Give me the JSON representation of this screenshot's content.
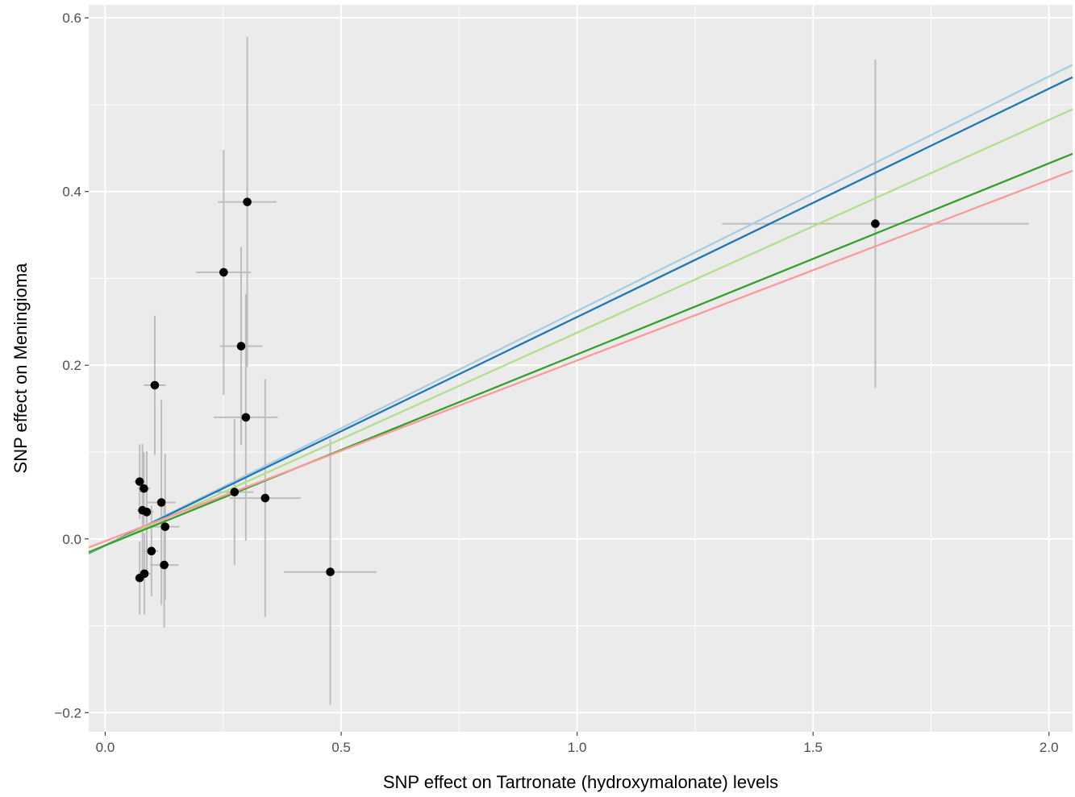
{
  "chart_data": {
    "type": "scatter",
    "title": "",
    "xlabel": "SNP effect on Tartronate (hydroxymalonate) levels",
    "ylabel": "SNP effect on Meningioma",
    "xlim": [
      -0.035,
      2.05
    ],
    "ylim": [
      -0.222,
      0.615
    ],
    "x_ticks": [
      0.0,
      0.5,
      1.0,
      1.5,
      2.0
    ],
    "x_tick_labels": [
      "0.0",
      "0.5",
      "1.0",
      "1.5",
      "2.0"
    ],
    "y_ticks": [
      -0.2,
      0.0,
      0.2,
      0.4,
      0.6
    ],
    "y_tick_labels": [
      "−0.2",
      "0.0",
      "0.2",
      "0.4",
      "0.6"
    ],
    "grid": true,
    "legend": "none",
    "colors": {
      "panel": "#ebebeb",
      "grid": "#ffffff",
      "point": "#000000",
      "error_bar": "#bdbdbd"
    },
    "points": [
      {
        "x": 0.073,
        "y": 0.066,
        "x_err": 0.012,
        "y_err": 0.043
      },
      {
        "x": 0.082,
        "y": 0.058,
        "x_err": 0.013,
        "y_err": 0.042
      },
      {
        "x": 0.079,
        "y": 0.033,
        "x_err": 0.012,
        "y_err": 0.076
      },
      {
        "x": 0.088,
        "y": 0.031,
        "x_err": 0.014,
        "y_err": 0.07
      },
      {
        "x": 0.073,
        "y": -0.045,
        "x_err": 0.01,
        "y_err": 0.042
      },
      {
        "x": 0.083,
        "y": -0.04,
        "x_err": 0.013,
        "y_err": 0.047
      },
      {
        "x": 0.098,
        "y": -0.014,
        "x_err": 0.014,
        "y_err": 0.052
      },
      {
        "x": 0.105,
        "y": 0.177,
        "x_err": 0.023,
        "y_err": 0.08
      },
      {
        "x": 0.119,
        "y": 0.042,
        "x_err": 0.03,
        "y_err": 0.118
      },
      {
        "x": 0.127,
        "y": 0.014,
        "x_err": 0.03,
        "y_err": 0.084
      },
      {
        "x": 0.125,
        "y": -0.03,
        "x_err": 0.03,
        "y_err": 0.072
      },
      {
        "x": 0.251,
        "y": 0.307,
        "x_err": 0.058,
        "y_err": 0.141
      },
      {
        "x": 0.288,
        "y": 0.222,
        "x_err": 0.045,
        "y_err": 0.114
      },
      {
        "x": 0.301,
        "y": 0.388,
        "x_err": 0.062,
        "y_err": 0.19
      },
      {
        "x": 0.298,
        "y": 0.14,
        "x_err": 0.068,
        "y_err": 0.142
      },
      {
        "x": 0.274,
        "y": 0.054,
        "x_err": 0.04,
        "y_err": 0.084
      },
      {
        "x": 0.339,
        "y": 0.047,
        "x_err": 0.075,
        "y_err": 0.137
      },
      {
        "x": 0.477,
        "y": -0.038,
        "x_err": 0.098,
        "y_err": 0.153
      },
      {
        "x": 1.632,
        "y": 0.363,
        "x_err": 0.325,
        "y_err": 0.189
      }
    ],
    "lines": [
      {
        "color": "#a6cee3",
        "slope": 0.27,
        "intercept": -0.0075
      },
      {
        "color": "#1f78b4",
        "slope": 0.263,
        "intercept": -0.0075
      },
      {
        "color": "#b2df8a",
        "slope": 0.245,
        "intercept": -0.0075
      },
      {
        "color": "#33a02c",
        "slope": 0.22,
        "intercept": -0.0075
      },
      {
        "color": "#fb9a99",
        "slope": 0.208,
        "intercept": -0.0025
      }
    ]
  }
}
